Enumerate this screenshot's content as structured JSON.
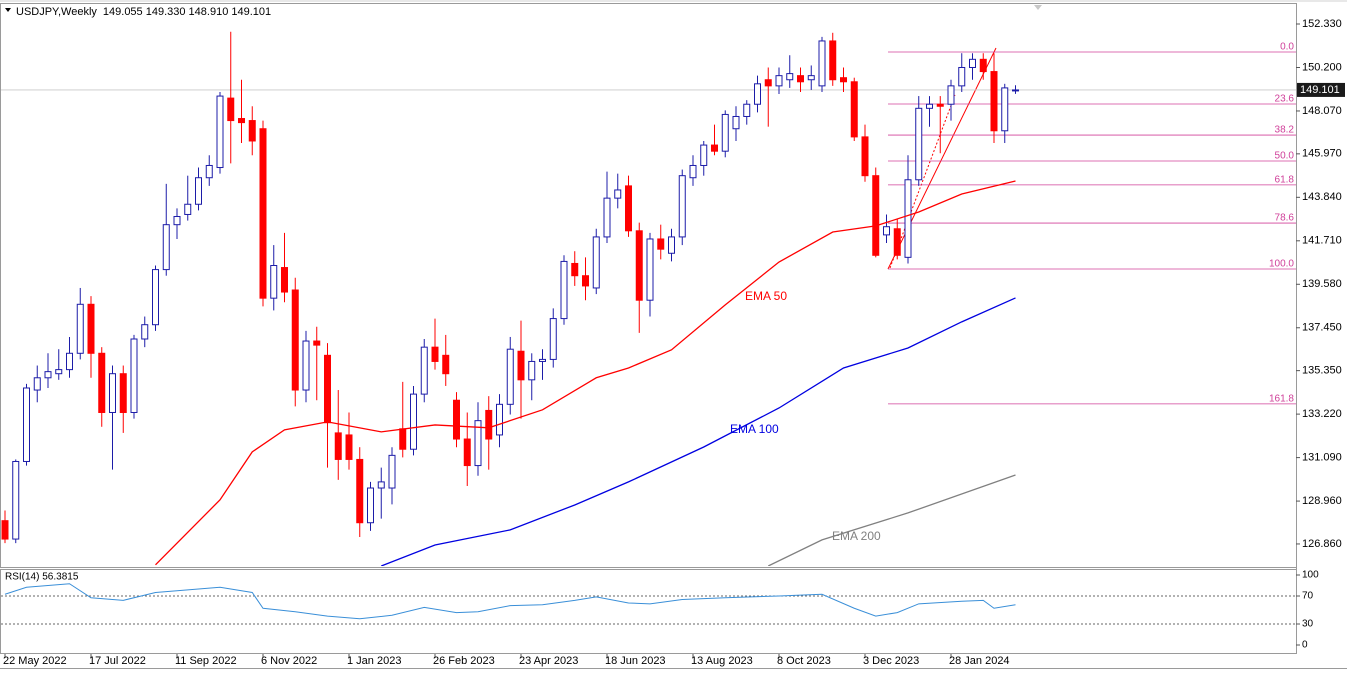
{
  "chart_data": {
    "type": "candlestick",
    "title": "USDJPY,Weekly",
    "ohlc_text": "149.055 149.330 148.910 149.101",
    "bull_color": "#1c1ca8",
    "bear_color": "#ff0000",
    "open": [
      128.0,
      127.1,
      130.9,
      134.4,
      135.0,
      135.2,
      135.4,
      136.2,
      138.6,
      136.2,
      133.3,
      135.2,
      133.3,
      136.9,
      137.6,
      140.3,
      142.5,
      143.0,
      143.5,
      144.8,
      145.3,
      148.7,
      147.7,
      147.6,
      147.2,
      138.9,
      140.4,
      139.3,
      134.4,
      136.8,
      136.1,
      132.3,
      132.2,
      131.0,
      127.9,
      129.6,
      129.6,
      132.5,
      131.5,
      134.2,
      136.5,
      136.1,
      133.9,
      132.0,
      130.7,
      133.4,
      132.2,
      133.7,
      136.3,
      134.9,
      135.8,
      135.9,
      137.9,
      140.6,
      140.0,
      139.4,
      141.9,
      143.8,
      144.4,
      142.2,
      138.8,
      141.8,
      141.1,
      141.9,
      144.8,
      145.4,
      146.4,
      146.1,
      147.2,
      147.8,
      148.4,
      149.6,
      149.3,
      149.6,
      149.8,
      149.6,
      149.3,
      151.5,
      149.7,
      149.5,
      146.8,
      144.9,
      142.0,
      142.3,
      140.9,
      144.7,
      148.2,
      148.4,
      148.4,
      149.3,
      150.2,
      150.6,
      150.0,
      147.1,
      149.055
    ],
    "high": [
      128.5,
      131.0,
      134.7,
      135.6,
      136.2,
      136.4,
      137.0,
      139.4,
      139.0,
      136.5,
      135.6,
      135.6,
      137.1,
      138.0,
      140.5,
      144.5,
      143.3,
      144.9,
      145.3,
      145.9,
      149.0,
      151.95,
      149.6,
      148.3,
      147.6,
      141.5,
      142.1,
      139.9,
      137.3,
      137.5,
      136.7,
      134.4,
      133.3,
      131.6,
      129.9,
      130.6,
      131.6,
      134.8,
      134.6,
      136.9,
      137.9,
      137.1,
      134.3,
      133.3,
      133.8,
      134.1,
      134.2,
      137.0,
      137.8,
      136.2,
      136.4,
      138.4,
      141.0,
      141.2,
      140.9,
      142.3,
      145.1,
      145.0,
      144.9,
      142.6,
      142.1,
      142.5,
      142.3,
      145.2,
      145.9,
      146.6,
      147.4,
      148.1,
      148.3,
      148.6,
      149.8,
      150.2,
      150.2,
      150.8,
      150.2,
      150.3,
      151.7,
      151.9,
      150.2,
      149.7,
      147.4,
      145.3,
      143.0,
      142.8,
      145.9,
      148.8,
      148.8,
      148.8,
      149.6,
      150.9,
      150.9,
      150.9,
      150.9,
      149.4,
      149.33
    ],
    "low": [
      126.9,
      126.9,
      130.7,
      133.8,
      134.5,
      134.9,
      135.0,
      135.9,
      135.0,
      132.6,
      130.5,
      132.3,
      133.0,
      136.5,
      137.3,
      140.0,
      141.8,
      142.7,
      143.2,
      144.4,
      145.0,
      145.5,
      146.5,
      145.9,
      138.5,
      138.3,
      138.7,
      133.6,
      133.8,
      133.9,
      130.6,
      130.0,
      130.5,
      127.2,
      127.5,
      128.1,
      128.8,
      131.1,
      131.2,
      133.8,
      135.4,
      134.6,
      131.6,
      129.7,
      130.2,
      130.5,
      131.6,
      133.2,
      133.0,
      133.9,
      134.9,
      135.5,
      137.6,
      139.5,
      138.8,
      139.1,
      141.6,
      143.3,
      141.9,
      137.2,
      138.0,
      140.8,
      140.7,
      141.5,
      144.4,
      144.9,
      145.9,
      145.8,
      146.6,
      147.4,
      148.0,
      147.3,
      148.9,
      149.2,
      149.0,
      149.1,
      149.0,
      149.3,
      149.0,
      146.6,
      144.6,
      140.9,
      141.6,
      140.8,
      140.6,
      144.4,
      147.3,
      146.0,
      147.6,
      149.0,
      149.6,
      149.6,
      146.5,
      146.5,
      148.91
    ],
    "close": [
      127.1,
      130.9,
      134.5,
      135.0,
      135.3,
      135.4,
      136.2,
      138.6,
      136.2,
      133.3,
      135.2,
      133.3,
      136.9,
      137.6,
      140.3,
      142.5,
      142.9,
      143.5,
      144.8,
      145.4,
      148.8,
      147.6,
      147.5,
      146.6,
      138.9,
      140.5,
      139.2,
      134.4,
      136.8,
      136.6,
      132.8,
      131.0,
      131.0,
      127.9,
      129.6,
      129.9,
      131.2,
      131.5,
      134.2,
      136.5,
      135.8,
      135.2,
      132.0,
      130.7,
      132.9,
      132.0,
      133.7,
      136.4,
      134.9,
      135.8,
      135.9,
      137.9,
      140.7,
      140.0,
      139.5,
      141.9,
      143.8,
      144.2,
      142.2,
      138.8,
      141.8,
      141.3,
      141.9,
      144.9,
      145.4,
      146.4,
      146.1,
      147.9,
      147.8,
      148.4,
      149.4,
      149.3,
      149.8,
      149.9,
      149.5,
      149.8,
      151.5,
      149.6,
      149.5,
      146.8,
      144.9,
      141.0,
      142.4,
      141.0,
      144.7,
      148.2,
      148.4,
      148.3,
      149.3,
      150.2,
      150.6,
      150.0,
      147.1,
      149.2,
      149.101
    ],
    "ylim": [
      125.78,
      153.31
    ],
    "yticks": [
      {
        "value": 152.33,
        "label": "152.330"
      },
      {
        "value": 150.2,
        "label": "150.200"
      },
      {
        "value": 148.07,
        "label": "148.070"
      },
      {
        "value": 145.97,
        "label": "145.970"
      },
      {
        "value": 143.84,
        "label": "143.840"
      },
      {
        "value": 141.71,
        "label": "141.710"
      },
      {
        "value": 139.58,
        "label": "139.580"
      },
      {
        "value": 137.45,
        "label": "137.450"
      },
      {
        "value": 135.35,
        "label": "135.350"
      },
      {
        "value": 133.22,
        "label": "133.220"
      },
      {
        "value": 131.09,
        "label": "131.090"
      },
      {
        "value": 128.96,
        "label": "128.960"
      },
      {
        "value": 126.86,
        "label": "126.860"
      }
    ],
    "xticks": [
      {
        "value": 0,
        "label": "22 May 2022"
      },
      {
        "value": 8,
        "label": "17 Jul 2022"
      },
      {
        "value": 16,
        "label": "11 Sep 2022"
      },
      {
        "value": 24,
        "label": "6 Nov 2022"
      },
      {
        "value": 32,
        "label": "1 Jan 2023"
      },
      {
        "value": 40,
        "label": "26 Feb 2023"
      },
      {
        "value": 48,
        "label": "23 Apr 2023"
      },
      {
        "value": 56,
        "label": "18 Jun 2023"
      },
      {
        "value": 64,
        "label": "13 Aug 2023"
      },
      {
        "value": 72,
        "label": "8 Oct 2023"
      },
      {
        "value": 80,
        "label": "3 Dec 2023"
      },
      {
        "value": 88,
        "label": "28 Jan 2024"
      }
    ],
    "series": [
      {
        "name": "EMA 50",
        "color": "#ff0000",
        "x": [
          14,
          20,
          23,
          26,
          30,
          35,
          40,
          45,
          50,
          55,
          58,
          62,
          67,
          72,
          77,
          81,
          85,
          89,
          94
        ],
        "values": [
          125.84,
          129.02,
          131.37,
          132.45,
          132.84,
          132.35,
          132.69,
          132.55,
          133.43,
          135.0,
          135.48,
          136.37,
          138.57,
          140.67,
          142.14,
          142.44,
          143.12,
          144.0,
          144.64
        ]
      },
      {
        "name": "EMA 100",
        "color": "#0000e0",
        "x": [
          35,
          40,
          47,
          53,
          58,
          65,
          72,
          78,
          84,
          89,
          94
        ],
        "values": [
          125.78,
          126.81,
          127.55,
          128.77,
          129.9,
          131.61,
          133.52,
          135.48,
          136.46,
          137.74,
          138.91
        ]
      },
      {
        "name": "EMA 200",
        "color": "#808080",
        "x": [
          71,
          76,
          84,
          94
        ],
        "values": [
          125.78,
          127.06,
          128.38,
          130.24
        ]
      }
    ],
    "fib": {
      "color": "#d0409a",
      "labels": [
        "0.0",
        "23.6",
        "38.2",
        "50.0",
        "61.8",
        "78.6",
        "100.0",
        "161.8"
      ],
      "prices": [
        150.96,
        148.41,
        146.89,
        145.62,
        144.45,
        142.58,
        140.33,
        133.72
      ]
    },
    "current_price_label": "149.101",
    "rsi": {
      "title": "RSI(14) 56.3815",
      "color": "#3a8fd8",
      "ylim": [
        0,
        100
      ],
      "yticks": [
        100,
        70,
        30,
        0
      ],
      "levels": [
        70,
        30
      ],
      "x": [
        0,
        2,
        6,
        8,
        11,
        14,
        17,
        20,
        23,
        24,
        27,
        30,
        33,
        36,
        39,
        42,
        44,
        47,
        50,
        53,
        55,
        58,
        60,
        63,
        67,
        72,
        76,
        79,
        81,
        83,
        85,
        89,
        91,
        92,
        94
      ],
      "values": [
        72.5,
        82.5,
        87.5,
        67.5,
        63.8,
        75,
        78.8,
        82.5,
        75,
        52.5,
        47.5,
        41.3,
        37.5,
        42.5,
        53.8,
        46.3,
        47.5,
        56.3,
        57.5,
        63.8,
        68.8,
        60,
        58.8,
        65,
        67.5,
        70,
        72.5,
        52.5,
        41.3,
        46.3,
        58.8,
        62.5,
        63.8,
        52.5,
        57.5
      ]
    }
  }
}
